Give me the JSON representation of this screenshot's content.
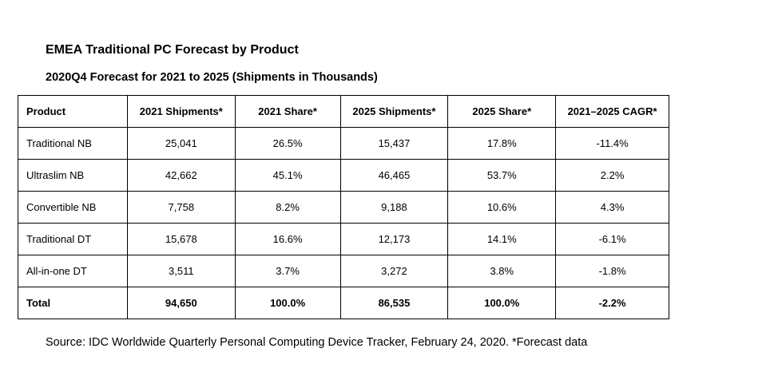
{
  "title": "EMEA Traditional PC Forecast by Product",
  "subtitle": "2020Q4 Forecast for 2021 to 2025 (Shipments in Thousands)",
  "table": {
    "headers": [
      "Product",
      "2021 Shipments*",
      "2021 Share*",
      "2025 Shipments*",
      "2025 Share*",
      "2021–2025 CAGR*"
    ],
    "rows": [
      [
        "Traditional NB",
        "25,041",
        "26.5%",
        "15,437",
        "17.8%",
        "-11.4%"
      ],
      [
        "Ultraslim NB",
        "42,662",
        "45.1%",
        "46,465",
        "53.7%",
        "2.2%"
      ],
      [
        "Convertible NB",
        "7,758",
        "8.2%",
        "9,188",
        "10.6%",
        "4.3%"
      ],
      [
        "Traditional DT",
        "15,678",
        "16.6%",
        "12,173",
        "14.1%",
        "-6.1%"
      ],
      [
        "All-in-one DT",
        "3,511",
        "3.7%",
        "3,272",
        "3.8%",
        "-1.8%"
      ]
    ],
    "total": [
      "Total",
      "94,650",
      "100.0%",
      "86,535",
      "100.0%",
      "-2.2%"
    ]
  },
  "source": "Source: IDC Worldwide Quarterly Personal Computing Device Tracker, February 24, 2020. *Forecast data"
}
